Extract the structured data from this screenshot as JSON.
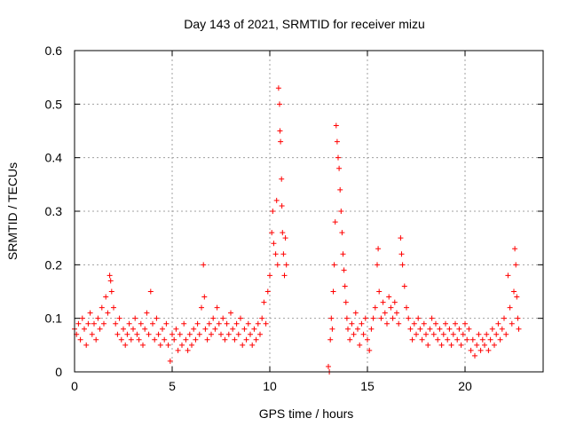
{
  "chart_data": {
    "type": "scatter",
    "title": "Day 143 of 2021, SRMTID for receiver mizu",
    "xlabel": "GPS time / hours",
    "ylabel": "SRMTID / TECUs",
    "xlim": [
      0,
      24
    ],
    "ylim": [
      0,
      0.6
    ],
    "xticks": [
      0,
      5,
      10,
      15,
      20
    ],
    "xtick_labels": [
      "0",
      "5",
      "10",
      "15",
      "20"
    ],
    "yticks": [
      0,
      0.1,
      0.2,
      0.3,
      0.4,
      0.5,
      0.6
    ],
    "ytick_labels": [
      "0",
      "0.1",
      "0.2",
      "0.3",
      "0.4",
      "0.5",
      "0.6"
    ],
    "grid": true,
    "marker": "+",
    "color": "#ff0000",
    "series": [
      {
        "name": "SRMTID",
        "points": [
          [
            0.0,
            0.08
          ],
          [
            0.1,
            0.07
          ],
          [
            0.2,
            0.09
          ],
          [
            0.3,
            0.06
          ],
          [
            0.4,
            0.1
          ],
          [
            0.5,
            0.08
          ],
          [
            0.6,
            0.05
          ],
          [
            0.7,
            0.09
          ],
          [
            0.8,
            0.11
          ],
          [
            0.9,
            0.07
          ],
          [
            1.0,
            0.09
          ],
          [
            1.1,
            0.06
          ],
          [
            1.2,
            0.1
          ],
          [
            1.3,
            0.08
          ],
          [
            1.4,
            0.12
          ],
          [
            1.5,
            0.09
          ],
          [
            1.6,
            0.14
          ],
          [
            1.7,
            0.11
          ],
          [
            1.8,
            0.18
          ],
          [
            1.85,
            0.17
          ],
          [
            1.9,
            0.15
          ],
          [
            2.0,
            0.12
          ],
          [
            2.1,
            0.09
          ],
          [
            2.2,
            0.07
          ],
          [
            2.3,
            0.1
          ],
          [
            2.4,
            0.06
          ],
          [
            2.5,
            0.08
          ],
          [
            2.6,
            0.05
          ],
          [
            2.7,
            0.07
          ],
          [
            2.8,
            0.09
          ],
          [
            2.9,
            0.06
          ],
          [
            3.0,
            0.08
          ],
          [
            3.1,
            0.1
          ],
          [
            3.2,
            0.07
          ],
          [
            3.3,
            0.06
          ],
          [
            3.4,
            0.09
          ],
          [
            3.5,
            0.05
          ],
          [
            3.6,
            0.08
          ],
          [
            3.7,
            0.11
          ],
          [
            3.8,
            0.07
          ],
          [
            3.9,
            0.15
          ],
          [
            4.0,
            0.09
          ],
          [
            4.1,
            0.06
          ],
          [
            4.2,
            0.1
          ],
          [
            4.3,
            0.07
          ],
          [
            4.4,
            0.05
          ],
          [
            4.5,
            0.08
          ],
          [
            4.6,
            0.06
          ],
          [
            4.7,
            0.09
          ],
          [
            4.8,
            0.05
          ],
          [
            4.9,
            0.02
          ],
          [
            5.0,
            0.07
          ],
          [
            5.1,
            0.06
          ],
          [
            5.2,
            0.08
          ],
          [
            5.3,
            0.04
          ],
          [
            5.4,
            0.07
          ],
          [
            5.5,
            0.05
          ],
          [
            5.6,
            0.09
          ],
          [
            5.7,
            0.06
          ],
          [
            5.8,
            0.04
          ],
          [
            5.9,
            0.07
          ],
          [
            6.0,
            0.05
          ],
          [
            6.1,
            0.08
          ],
          [
            6.2,
            0.06
          ],
          [
            6.3,
            0.09
          ],
          [
            6.4,
            0.07
          ],
          [
            6.5,
            0.12
          ],
          [
            6.6,
            0.2
          ],
          [
            6.65,
            0.14
          ],
          [
            6.7,
            0.08
          ],
          [
            6.8,
            0.06
          ],
          [
            6.9,
            0.09
          ],
          [
            7.0,
            0.07
          ],
          [
            7.1,
            0.1
          ],
          [
            7.2,
            0.08
          ],
          [
            7.3,
            0.12
          ],
          [
            7.4,
            0.09
          ],
          [
            7.5,
            0.07
          ],
          [
            7.6,
            0.1
          ],
          [
            7.7,
            0.06
          ],
          [
            7.8,
            0.09
          ],
          [
            7.9,
            0.07
          ],
          [
            8.0,
            0.11
          ],
          [
            8.1,
            0.08
          ],
          [
            8.2,
            0.06
          ],
          [
            8.3,
            0.09
          ],
          [
            8.4,
            0.07
          ],
          [
            8.5,
            0.1
          ],
          [
            8.6,
            0.05
          ],
          [
            8.7,
            0.08
          ],
          [
            8.8,
            0.06
          ],
          [
            8.9,
            0.09
          ],
          [
            9.0,
            0.07
          ],
          [
            9.1,
            0.05
          ],
          [
            9.2,
            0.08
          ],
          [
            9.3,
            0.06
          ],
          [
            9.4,
            0.09
          ],
          [
            9.5,
            0.07
          ],
          [
            9.6,
            0.1
          ],
          [
            9.7,
            0.13
          ],
          [
            9.8,
            0.09
          ],
          [
            9.9,
            0.15
          ],
          [
            10.0,
            0.18
          ],
          [
            10.1,
            0.26
          ],
          [
            10.15,
            0.3
          ],
          [
            10.2,
            0.24
          ],
          [
            10.3,
            0.22
          ],
          [
            10.35,
            0.32
          ],
          [
            10.4,
            0.2
          ],
          [
            10.45,
            0.53
          ],
          [
            10.5,
            0.5
          ],
          [
            10.52,
            0.45
          ],
          [
            10.55,
            0.43
          ],
          [
            10.6,
            0.36
          ],
          [
            10.62,
            0.31
          ],
          [
            10.65,
            0.26
          ],
          [
            10.7,
            0.22
          ],
          [
            10.75,
            0.18
          ],
          [
            10.8,
            0.25
          ],
          [
            10.85,
            0.2
          ],
          [
            13.0,
            0.01
          ],
          [
            13.05,
            0.0
          ],
          [
            13.1,
            0.06
          ],
          [
            13.15,
            0.1
          ],
          [
            13.2,
            0.08
          ],
          [
            13.25,
            0.15
          ],
          [
            13.3,
            0.2
          ],
          [
            13.35,
            0.28
          ],
          [
            13.4,
            0.46
          ],
          [
            13.45,
            0.43
          ],
          [
            13.5,
            0.4
          ],
          [
            13.55,
            0.38
          ],
          [
            13.6,
            0.34
          ],
          [
            13.65,
            0.3
          ],
          [
            13.7,
            0.26
          ],
          [
            13.75,
            0.22
          ],
          [
            13.8,
            0.19
          ],
          [
            13.85,
            0.16
          ],
          [
            13.9,
            0.13
          ],
          [
            13.95,
            0.1
          ],
          [
            14.0,
            0.08
          ],
          [
            14.1,
            0.06
          ],
          [
            14.2,
            0.09
          ],
          [
            14.3,
            0.07
          ],
          [
            14.4,
            0.11
          ],
          [
            14.5,
            0.08
          ],
          [
            14.6,
            0.05
          ],
          [
            14.7,
            0.09
          ],
          [
            14.8,
            0.07
          ],
          [
            14.9,
            0.1
          ],
          [
            15.0,
            0.06
          ],
          [
            15.1,
            0.04
          ],
          [
            15.2,
            0.08
          ],
          [
            15.3,
            0.1
          ],
          [
            15.4,
            0.12
          ],
          [
            15.5,
            0.2
          ],
          [
            15.55,
            0.23
          ],
          [
            15.6,
            0.15
          ],
          [
            15.7,
            0.1
          ],
          [
            15.8,
            0.13
          ],
          [
            15.9,
            0.11
          ],
          [
            16.0,
            0.09
          ],
          [
            16.1,
            0.14
          ],
          [
            16.2,
            0.12
          ],
          [
            16.3,
            0.1
          ],
          [
            16.4,
            0.13
          ],
          [
            16.5,
            0.11
          ],
          [
            16.6,
            0.09
          ],
          [
            16.7,
            0.25
          ],
          [
            16.75,
            0.22
          ],
          [
            16.8,
            0.2
          ],
          [
            16.9,
            0.16
          ],
          [
            17.0,
            0.12
          ],
          [
            17.1,
            0.1
          ],
          [
            17.2,
            0.08
          ],
          [
            17.3,
            0.06
          ],
          [
            17.4,
            0.09
          ],
          [
            17.5,
            0.07
          ],
          [
            17.6,
            0.1
          ],
          [
            17.7,
            0.08
          ],
          [
            17.8,
            0.06
          ],
          [
            17.9,
            0.09
          ],
          [
            18.0,
            0.07
          ],
          [
            18.1,
            0.05
          ],
          [
            18.2,
            0.08
          ],
          [
            18.3,
            0.1
          ],
          [
            18.4,
            0.07
          ],
          [
            18.5,
            0.09
          ],
          [
            18.6,
            0.06
          ],
          [
            18.7,
            0.08
          ],
          [
            18.8,
            0.05
          ],
          [
            18.9,
            0.07
          ],
          [
            19.0,
            0.09
          ],
          [
            19.1,
            0.06
          ],
          [
            19.2,
            0.08
          ],
          [
            19.3,
            0.05
          ],
          [
            19.4,
            0.07
          ],
          [
            19.5,
            0.09
          ],
          [
            19.6,
            0.06
          ],
          [
            19.7,
            0.08
          ],
          [
            19.8,
            0.05
          ],
          [
            19.9,
            0.07
          ],
          [
            20.0,
            0.09
          ],
          [
            20.1,
            0.06
          ],
          [
            20.2,
            0.08
          ],
          [
            20.3,
            0.04
          ],
          [
            20.4,
            0.06
          ],
          [
            20.5,
            0.03
          ],
          [
            20.6,
            0.05
          ],
          [
            20.7,
            0.07
          ],
          [
            20.8,
            0.04
          ],
          [
            20.9,
            0.06
          ],
          [
            21.0,
            0.05
          ],
          [
            21.1,
            0.07
          ],
          [
            21.2,
            0.04
          ],
          [
            21.3,
            0.06
          ],
          [
            21.4,
            0.08
          ],
          [
            21.5,
            0.05
          ],
          [
            21.6,
            0.07
          ],
          [
            21.7,
            0.09
          ],
          [
            21.8,
            0.06
          ],
          [
            21.9,
            0.08
          ],
          [
            22.0,
            0.1
          ],
          [
            22.1,
            0.07
          ],
          [
            22.2,
            0.18
          ],
          [
            22.3,
            0.12
          ],
          [
            22.4,
            0.09
          ],
          [
            22.5,
            0.15
          ],
          [
            22.55,
            0.23
          ],
          [
            22.6,
            0.2
          ],
          [
            22.65,
            0.14
          ],
          [
            22.7,
            0.1
          ],
          [
            22.75,
            0.08
          ]
        ]
      }
    ]
  }
}
